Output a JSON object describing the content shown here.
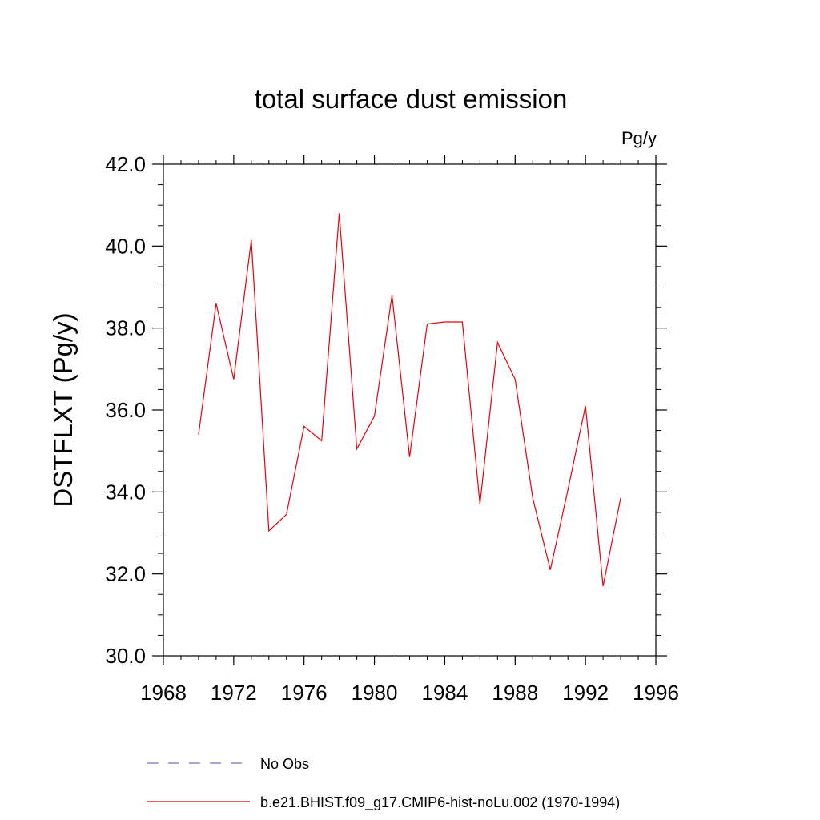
{
  "chart_data": {
    "type": "line",
    "title": "total surface dust emission",
    "units_label": "Pg/y",
    "xlabel": "",
    "ylabel": "DSTFLXT  (Pg/y)",
    "xlim": [
      1968,
      1996
    ],
    "ylim": [
      30.0,
      42.0
    ],
    "x_ticks": [
      "1968",
      "1972",
      "1976",
      "1980",
      "1984",
      "1988",
      "1992",
      "1996"
    ],
    "y_ticks": [
      "30.0",
      "32.0",
      "34.0",
      "36.0",
      "38.0",
      "40.0",
      "42.0"
    ],
    "grid": false,
    "legend_position": "bottom",
    "series": [
      {
        "name": "No Obs",
        "style": "dashed",
        "color": "#7a6fc0",
        "x": [],
        "values": []
      },
      {
        "name": "b.e21.BHIST.f09_g17.CMIP6-hist-noLu.002 (1970-1994)",
        "style": "solid",
        "color": "#e8000b",
        "x": [
          1970,
          1971,
          1972,
          1973,
          1974,
          1975,
          1976,
          1977,
          1978,
          1979,
          1980,
          1981,
          1982,
          1983,
          1984,
          1985,
          1986,
          1987,
          1988,
          1989,
          1990,
          1991,
          1992,
          1993,
          1994
        ],
        "values": [
          35.4,
          38.6,
          36.75,
          40.15,
          33.05,
          33.45,
          35.6,
          35.25,
          40.8,
          35.05,
          35.85,
          38.8,
          34.85,
          38.1,
          38.15,
          38.15,
          33.7,
          37.65,
          36.75,
          33.85,
          32.1,
          34.05,
          36.1,
          31.7,
          33.85
        ]
      }
    ]
  }
}
